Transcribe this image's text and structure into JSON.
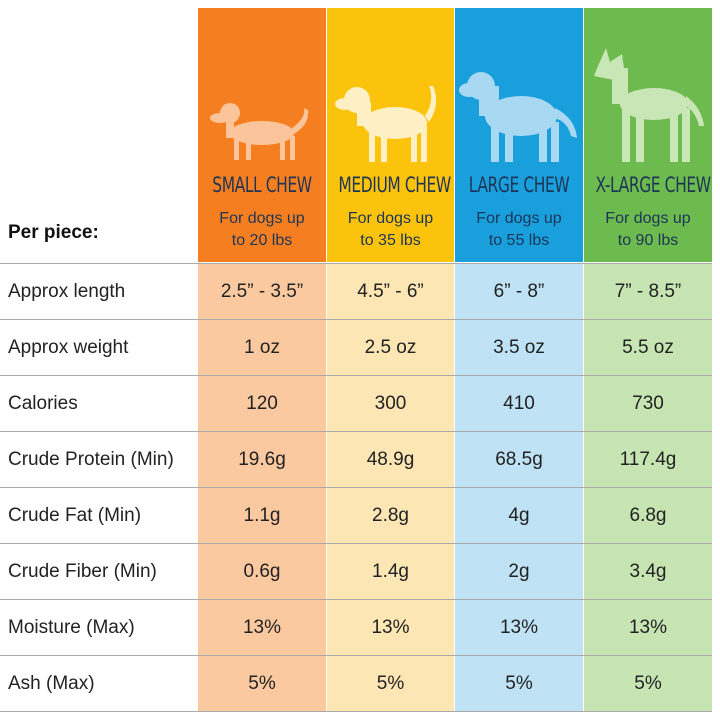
{
  "header": {
    "per_piece": "Per piece:"
  },
  "columns": [
    {
      "title": "SMALL CHEW",
      "subtitle": "For dogs up to 20 lbs"
    },
    {
      "title": "MEDIUM CHEW",
      "subtitle": "For dogs up to 35 lbs"
    },
    {
      "title": "LARGE CHEW",
      "subtitle": "For dogs up to 55 lbs"
    },
    {
      "title": "X-LARGE CHEW",
      "subtitle": "For dogs up to 90 lbs"
    }
  ],
  "rows": [
    {
      "label": "Approx length",
      "values": [
        "2.5” - 3.5”",
        "4.5” - 6”",
        "6” - 8”",
        "7” - 8.5”"
      ]
    },
    {
      "label": "Approx weight",
      "values": [
        "1 oz",
        "2.5 oz",
        "3.5 oz",
        "5.5 oz"
      ]
    },
    {
      "label": "Calories",
      "values": [
        "120",
        "300",
        "410",
        "730"
      ]
    },
    {
      "label": "Crude Protein (Min)",
      "values": [
        "19.6g",
        "48.9g",
        "68.5g",
        "117.4g"
      ]
    },
    {
      "label": "Crude Fat (Min)",
      "values": [
        "1.1g",
        "2.8g",
        "4g",
        "6.8g"
      ]
    },
    {
      "label": "Crude Fiber (Min)",
      "values": [
        "0.6g",
        "1.4g",
        "2g",
        "3.4g"
      ]
    },
    {
      "label": "Moisture (Max)",
      "values": [
        "13%",
        "13%",
        "13%",
        "13%"
      ]
    },
    {
      "label": "Ash (Max)",
      "values": [
        "5%",
        "5%",
        "5%",
        "5%"
      ]
    }
  ]
}
